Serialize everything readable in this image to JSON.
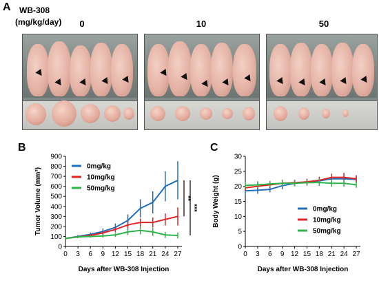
{
  "panel_a": {
    "letter": "A",
    "header_line1": "WB-308",
    "header_line2": "(mg/kg/day)",
    "groups": [
      {
        "dose": "0",
        "mice": 5,
        "tumor_sizes": [
          38,
          46,
          36,
          30,
          22
        ]
      },
      {
        "dose": "10",
        "mice": 5,
        "tumor_sizes": [
          26,
          24,
          22,
          18,
          20
        ]
      },
      {
        "dose": "50",
        "mice": 5,
        "tumor_sizes": [
          22,
          18,
          14,
          10,
          0
        ]
      }
    ]
  },
  "panel_b": {
    "letter": "B",
    "chart_data": {
      "type": "line",
      "xlabel": "Days after WB-308 Injection",
      "ylabel": "Tumor Volume (mm³)",
      "x": [
        0,
        3,
        6,
        9,
        12,
        15,
        18,
        21,
        24,
        27
      ],
      "xticks": [
        "0",
        "3",
        "6",
        "9",
        "12",
        "15",
        "18",
        "21",
        "24",
        "27"
      ],
      "yticks": [
        "0",
        "100",
        "200",
        "300",
        "400",
        "500",
        "600",
        "700",
        "800",
        "900"
      ],
      "ylim": [
        0,
        900
      ],
      "xlim": [
        0,
        28
      ],
      "series": [
        {
          "name": "0mg/kg",
          "color": "#1f6fbf",
          "values": [
            80,
            100,
            120,
            150,
            190,
            260,
            380,
            440,
            600,
            660
          ],
          "errors": [
            10,
            15,
            20,
            30,
            40,
            60,
            90,
            110,
            150,
            190
          ]
        },
        {
          "name": "10mg/kg",
          "color": "#e02424",
          "values": [
            80,
            95,
            110,
            135,
            170,
            215,
            240,
            240,
            270,
            300
          ],
          "errors": [
            10,
            12,
            15,
            20,
            30,
            40,
            40,
            50,
            60,
            90
          ]
        },
        {
          "name": "50mg/kg",
          "color": "#2db54a",
          "values": [
            80,
            95,
            100,
            105,
            115,
            145,
            160,
            145,
            115,
            110
          ],
          "errors": [
            10,
            12,
            12,
            15,
            20,
            30,
            40,
            40,
            30,
            30
          ]
        }
      ],
      "significance": [
        {
          "label": "**",
          "from_series": "0mg/kg",
          "to_series": "10mg/kg"
        },
        {
          "label": "***",
          "from_series": "0mg/kg",
          "to_series": "50mg/kg"
        }
      ],
      "legend": "top-left"
    }
  },
  "panel_c": {
    "letter": "C",
    "chart_data": {
      "type": "line",
      "xlabel": "Days after WB-308 Injection",
      "ylabel": "Body Weight (g)",
      "x": [
        0,
        3,
        6,
        9,
        12,
        15,
        18,
        21,
        24,
        27
      ],
      "xticks": [
        "0",
        "3",
        "6",
        "9",
        "12",
        "15",
        "18",
        "21",
        "24",
        "27"
      ],
      "yticks": [
        "0",
        "5",
        "10",
        "15",
        "20",
        "25",
        "30"
      ],
      "ylim": [
        0,
        30
      ],
      "xlim": [
        0,
        28
      ],
      "series": [
        {
          "name": "0mg/kg",
          "color": "#1f6fbf",
          "values": [
            18.5,
            18.7,
            19.0,
            20.2,
            21.0,
            21.5,
            21.8,
            22.5,
            22.5,
            22.3
          ],
          "errors": [
            1.2,
            1.2,
            1.0,
            1.2,
            1.0,
            1.0,
            1.2,
            1.5,
            1.5,
            1.2
          ]
        },
        {
          "name": "10mg/kg",
          "color": "#e02424",
          "values": [
            19.5,
            20.0,
            20.5,
            21.0,
            21.2,
            21.5,
            22.0,
            23.0,
            23.0,
            22.5
          ],
          "errors": [
            1.0,
            1.0,
            1.0,
            1.2,
            1.0,
            1.0,
            1.2,
            1.2,
            1.5,
            1.2
          ]
        },
        {
          "name": "50mg/kg",
          "color": "#2db54a",
          "values": [
            20.3,
            20.5,
            20.8,
            21.0,
            21.0,
            21.2,
            21.3,
            21.0,
            21.0,
            20.5
          ],
          "errors": [
            1.0,
            1.2,
            1.0,
            1.2,
            1.0,
            1.0,
            1.2,
            1.2,
            1.2,
            1.0
          ]
        }
      ],
      "legend": "bottom-right"
    }
  }
}
